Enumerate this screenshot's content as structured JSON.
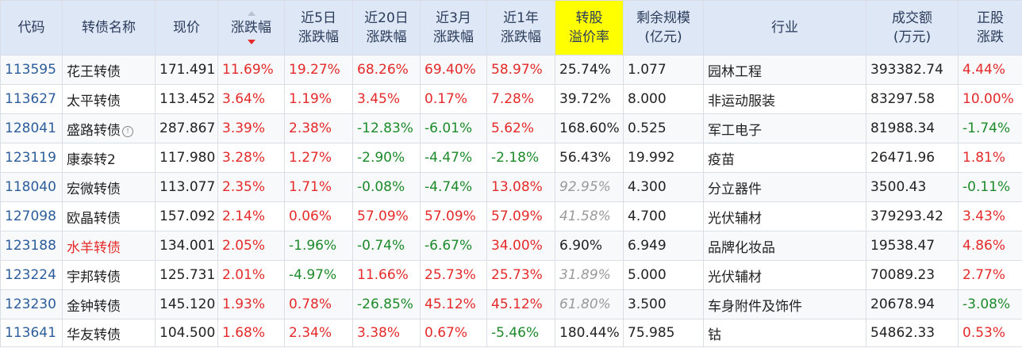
{
  "headers": [
    {
      "key": "code",
      "line1": "代码",
      "line2": ""
    },
    {
      "key": "name",
      "line1": "转债名称",
      "line2": ""
    },
    {
      "key": "price",
      "line1": "现价",
      "line2": ""
    },
    {
      "key": "chg",
      "line1": "涨跌幅",
      "line2": ""
    },
    {
      "key": "chg5",
      "line1": "近5日",
      "line2": "涨跌幅"
    },
    {
      "key": "chg20",
      "line1": "近20日",
      "line2": "涨跌幅"
    },
    {
      "key": "chg3m",
      "line1": "近3月",
      "line2": "涨跌幅"
    },
    {
      "key": "chg1y",
      "line1": "近1年",
      "line2": "涨跌幅"
    },
    {
      "key": "premium",
      "line1": "转股",
      "line2": "溢价率"
    },
    {
      "key": "remain",
      "line1": "剩余规模",
      "line2": "(亿元)"
    },
    {
      "key": "industry",
      "line1": "行业",
      "line2": ""
    },
    {
      "key": "volume",
      "line1": "成交额",
      "line2": "(万元)"
    },
    {
      "key": "stock_chg",
      "line1": "正股",
      "line2": "涨跌"
    }
  ],
  "rows": [
    {
      "code": "113595",
      "name": "花王转债",
      "price": "171.491",
      "chg": "11.69%",
      "chg5": "19.27%",
      "chg20": "68.26%",
      "chg3m": "69.40%",
      "chg1y": "58.97%",
      "premium": "25.74%",
      "remain": "1.077",
      "industry": "园林工程",
      "volume": "393382.74",
      "stock_chg": "4.44%"
    },
    {
      "code": "113627",
      "name": "太平转债",
      "price": "113.452",
      "chg": "3.64%",
      "chg5": "1.19%",
      "chg20": "3.45%",
      "chg3m": "0.17%",
      "chg1y": "7.28%",
      "premium": "39.72%",
      "remain": "8.000",
      "industry": "非运动服装",
      "volume": "83297.58",
      "stock_chg": "10.00%"
    },
    {
      "code": "128041",
      "name": "盛路转债",
      "price": "287.867",
      "chg": "3.39%",
      "chg5": "2.38%",
      "chg20": "-12.83%",
      "chg3m": "-6.01%",
      "chg1y": "5.62%",
      "premium": "168.60%",
      "remain": "0.525",
      "industry": "军工电子",
      "volume": "81988.34",
      "stock_chg": "-1.74%"
    },
    {
      "code": "123119",
      "name": "康泰转2",
      "price": "117.980",
      "chg": "3.28%",
      "chg5": "1.27%",
      "chg20": "-2.90%",
      "chg3m": "-4.47%",
      "chg1y": "-2.18%",
      "premium": "56.43%",
      "remain": "19.992",
      "industry": "疫苗",
      "volume": "26471.96",
      "stock_chg": "1.81%"
    },
    {
      "code": "118040",
      "name": "宏微转债",
      "price": "113.077",
      "chg": "2.35%",
      "chg5": "1.71%",
      "chg20": "-0.08%",
      "chg3m": "-4.74%",
      "chg1y": "13.08%",
      "premium": "92.95%",
      "remain": "4.300",
      "industry": "分立器件",
      "volume": "3500.43",
      "stock_chg": "-0.11%"
    },
    {
      "code": "127098",
      "name": "欧晶转债",
      "price": "157.092",
      "chg": "2.14%",
      "chg5": "0.06%",
      "chg20": "57.09%",
      "chg3m": "57.09%",
      "chg1y": "57.09%",
      "premium": "41.58%",
      "remain": "4.700",
      "industry": "光伏辅材",
      "volume": "379293.42",
      "stock_chg": "3.43%"
    },
    {
      "code": "123188",
      "name": "水羊转债",
      "price": "134.001",
      "chg": "2.05%",
      "chg5": "-1.96%",
      "chg20": "-0.74%",
      "chg3m": "-6.67%",
      "chg1y": "34.00%",
      "premium": "6.90%",
      "remain": "6.949",
      "industry": "品牌化妆品",
      "volume": "19538.47",
      "stock_chg": "4.86%"
    },
    {
      "code": "123224",
      "name": "宇邦转债",
      "price": "125.731",
      "chg": "2.01%",
      "chg5": "-4.97%",
      "chg20": "11.66%",
      "chg3m": "25.73%",
      "chg1y": "25.73%",
      "premium": "31.89%",
      "remain": "5.000",
      "industry": "光伏辅材",
      "volume": "70089.23",
      "stock_chg": "2.77%"
    },
    {
      "code": "123230",
      "name": "金钟转债",
      "price": "145.120",
      "chg": "1.93%",
      "chg5": "0.78%",
      "chg20": "-26.85%",
      "chg3m": "45.12%",
      "chg1y": "45.12%",
      "premium": "61.80%",
      "remain": "3.500",
      "industry": "车身附件及饰件",
      "volume": "20678.94",
      "stock_chg": "-3.08%"
    },
    {
      "code": "113641",
      "name": "华友转债",
      "price": "104.500",
      "chg": "1.68%",
      "chg5": "2.34%",
      "chg20": "3.38%",
      "chg3m": "0.67%",
      "chg1y": "-5.46%",
      "premium": "180.44%",
      "remain": "75.985",
      "industry": "钴",
      "volume": "54862.33",
      "stock_chg": "0.53%"
    }
  ],
  "styles": {
    "muted_premium_rows": [
      4,
      5,
      7,
      8
    ],
    "red_name_rows": [
      6
    ],
    "info_icon_rows": [
      2
    ],
    "highlight_header": "premium",
    "sorted_column": "chg",
    "colors": {
      "up": "#e42a2a",
      "down": "#1c8a2a",
      "header_bg": "#dde7f5",
      "highlight": "#ffff00",
      "code": "#2c5d9a"
    }
  }
}
